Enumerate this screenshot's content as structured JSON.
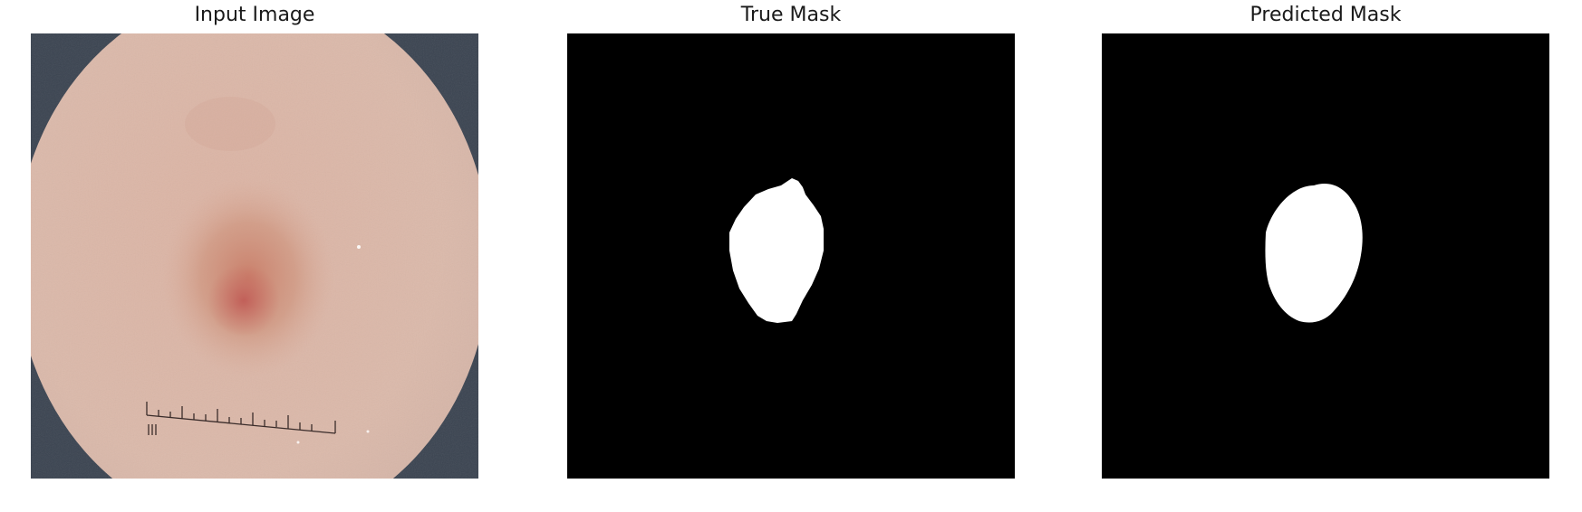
{
  "figure": {
    "panels": [
      {
        "title": "Input Image",
        "content": "dermoscopy photograph of a skin lesion with a measurement ruler"
      },
      {
        "title": "True Mask",
        "content": "binary segmentation mask"
      },
      {
        "title": "Predicted Mask",
        "content": "binary segmentation mask"
      }
    ],
    "colors": {
      "background": "#ffffff",
      "mask_background": "#000000",
      "mask_foreground": "#ffffff",
      "skin_base": "#dcb6a6",
      "lesion": "#c9866f"
    }
  }
}
